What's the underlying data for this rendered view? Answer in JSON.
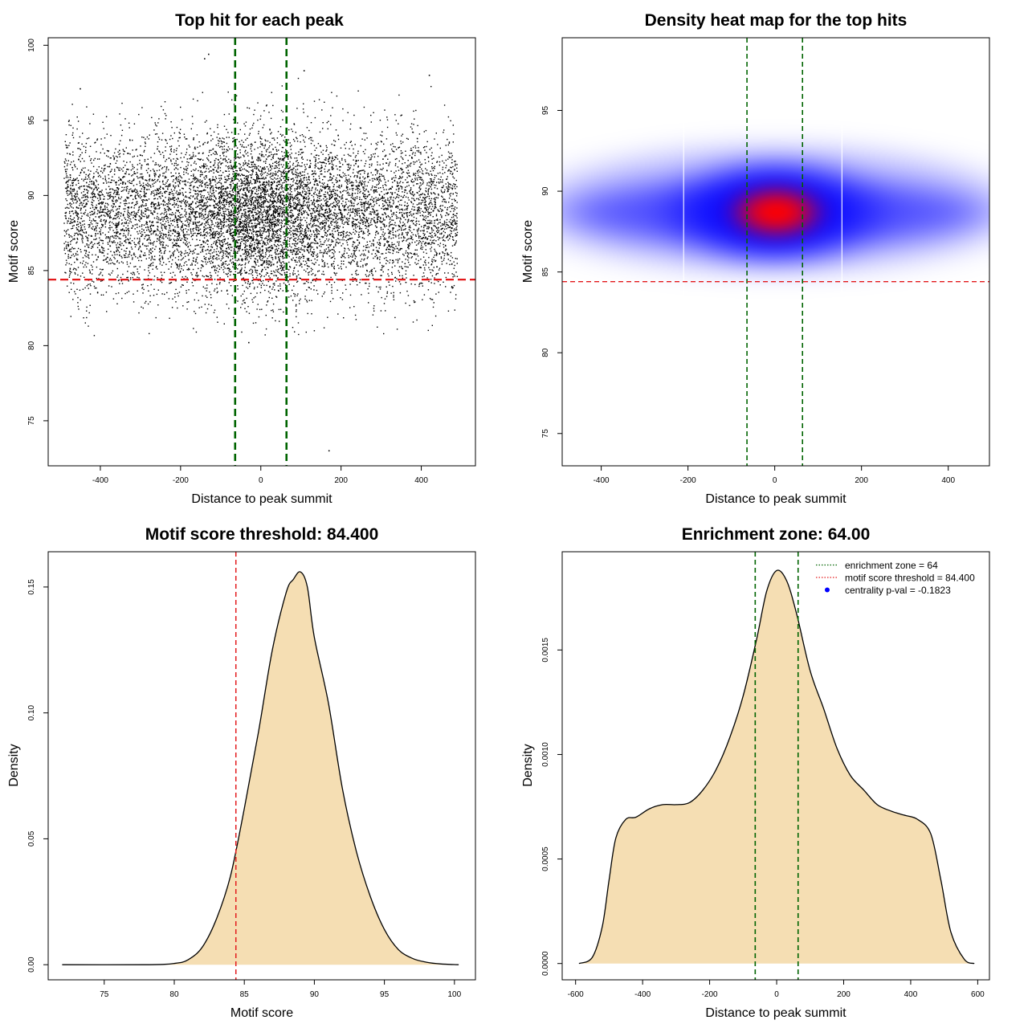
{
  "chart_data": [
    {
      "type": "scatter",
      "title": "Top hit for each peak",
      "xlabel": "Distance to peak summit",
      "ylabel": "Motif score",
      "xlim": [
        -530,
        535
      ],
      "ylim": [
        72,
        100.5
      ],
      "xticks": [
        -400,
        -200,
        0,
        200,
        400
      ],
      "yticks": [
        75,
        80,
        85,
        90,
        95,
        100
      ],
      "point_cloud": {
        "n_points": 10000,
        "x_range": [
          -490,
          490
        ],
        "score_center": 88.8,
        "score_spread": 2.6,
        "score_min": 80.5,
        "score_max": 98.5,
        "central_density_peak_x": 0
      },
      "outliers": [
        {
          "x": 170,
          "y": 73.0
        },
        {
          "x": -130,
          "y": 99.4
        },
        {
          "x": -140,
          "y": 99.1
        },
        {
          "x": 108,
          "y": 98.3
        },
        {
          "x": 420,
          "y": 98.0
        },
        {
          "x": -450,
          "y": 97.1
        },
        {
          "x": -30,
          "y": 80.2
        }
      ],
      "vlines": [
        -64,
        64
      ],
      "vline_color": "#006400",
      "hline": 84.4,
      "hline_color": "#e31a1c"
    },
    {
      "type": "heatmap",
      "title": "Density heat map for the top hits",
      "xlabel": "Distance to peak summit",
      "ylabel": "Motif score",
      "xlim": [
        -490,
        495
      ],
      "ylim": [
        73,
        99.5
      ],
      "xticks": [
        -400,
        -200,
        0,
        200,
        400
      ],
      "yticks": [
        75,
        80,
        85,
        90,
        95
      ],
      "density": {
        "center": [
          0,
          88.7
        ],
        "colors": [
          "#ffffff",
          "#0000ff",
          "#ff0000"
        ]
      },
      "white_lines": [
        -210,
        155
      ],
      "vlines": [
        -64,
        64
      ],
      "vline_color": "#006400",
      "hline": 84.4,
      "hline_color": "#e31a1c"
    },
    {
      "type": "area",
      "title": "Motif score threshold: 84.400",
      "xlabel": "Motif score",
      "ylabel": "Density",
      "xlim": [
        71,
        101.5
      ],
      "ylim": [
        -0.006,
        0.164
      ],
      "xticks": [
        75,
        80,
        85,
        90,
        95,
        100
      ],
      "yticks": [
        "0.00",
        "0.05",
        "0.10",
        "0.15"
      ],
      "x": [
        72,
        78,
        80,
        81,
        82,
        83,
        84,
        85,
        86,
        87,
        88,
        88.5,
        89,
        89.5,
        90,
        91,
        92,
        93,
        94,
        95,
        96,
        97,
        98,
        99,
        100.3
      ],
      "y": [
        0.0,
        0.0,
        0.0005,
        0.002,
        0.007,
        0.018,
        0.035,
        0.062,
        0.092,
        0.125,
        0.148,
        0.153,
        0.156,
        0.15,
        0.13,
        0.104,
        0.07,
        0.045,
        0.027,
        0.014,
        0.006,
        0.0025,
        0.001,
        0.0003,
        0.0
      ],
      "fill": "#f5deb3",
      "vline": 84.4,
      "vline_color": "#e31a1c"
    },
    {
      "type": "area",
      "title": "Enrichment zone: 64.00",
      "xlabel": "Distance to peak summit",
      "ylabel": "Density",
      "xlim": [
        -640,
        635
      ],
      "ylim": [
        -7.8e-05,
        0.00197
      ],
      "xticks": [
        -600,
        -400,
        -200,
        0,
        200,
        400,
        600
      ],
      "yticks": [
        "0.0000",
        "0.0005",
        "0.0010",
        "0.0015"
      ],
      "x": [
        -590,
        -550,
        -520,
        -500,
        -480,
        -450,
        -420,
        -380,
        -340,
        -300,
        -260,
        -220,
        -180,
        -140,
        -100,
        -60,
        -30,
        0,
        30,
        60,
        100,
        140,
        180,
        220,
        260,
        300,
        340,
        380,
        420,
        460,
        490,
        520,
        560,
        590
      ],
      "y": [
        0.0,
        3e-05,
        0.00018,
        0.0004,
        0.0006,
        0.00069,
        0.0007,
        0.00074,
        0.00076,
        0.00076,
        0.00077,
        0.00083,
        0.00093,
        0.00108,
        0.00128,
        0.00155,
        0.00178,
        0.00188,
        0.00183,
        0.00167,
        0.0014,
        0.00122,
        0.00103,
        0.0009,
        0.00083,
        0.00076,
        0.00073,
        0.00071,
        0.00069,
        0.00062,
        0.0004,
        0.00015,
        2e-05,
        0.0
      ],
      "fill": "#f5deb3",
      "vlines": [
        -64,
        64
      ],
      "vline_color": "#006400",
      "legend": {
        "placement": "top-right",
        "entries": [
          {
            "label": "enrichment zone = 64",
            "color": "#006400",
            "style": "dotted-line"
          },
          {
            "label": "motif score threshold = 84.400",
            "color": "#e31a1c",
            "style": "dotted-line"
          },
          {
            "label": "centrality p-val = -0.1823",
            "color": "#0000ff",
            "style": "point"
          }
        ]
      }
    }
  ]
}
